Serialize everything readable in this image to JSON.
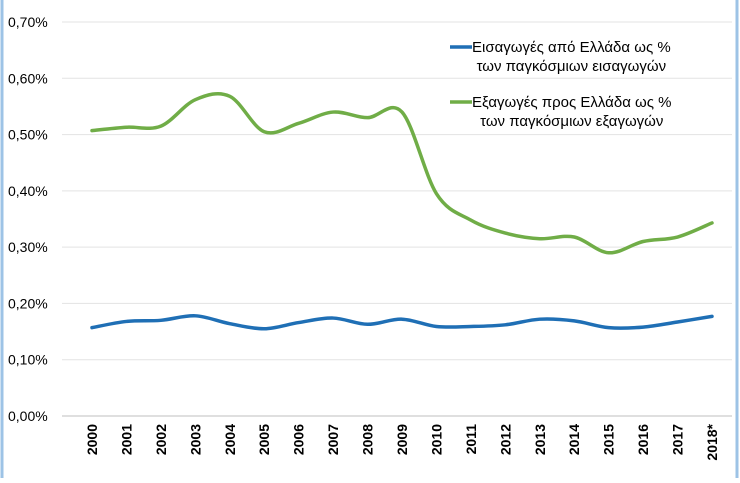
{
  "chart_data": {
    "type": "line",
    "categories": [
      "2000",
      "2001",
      "2002",
      "2003",
      "2004",
      "2005",
      "2006",
      "2007",
      "2008",
      "2009",
      "2010",
      "2011",
      "2012",
      "2013",
      "2014",
      "2015",
      "2016",
      "2017",
      "2018*"
    ],
    "series": [
      {
        "name": "Εισαγωγές από Ελλάδα ως %\nτων παγκόσμιων εισαγωγών",
        "color": "#1f6fb5",
        "values": [
          0.157,
          0.168,
          0.17,
          0.178,
          0.164,
          0.155,
          0.166,
          0.174,
          0.163,
          0.172,
          0.159,
          0.159,
          0.162,
          0.172,
          0.169,
          0.157,
          0.158,
          0.167,
          0.177
        ]
      },
      {
        "name": "Εξαγωγές προς Ελλάδα ως %\nτων παγκόσμιων εξαγωγών",
        "color": "#70ad47",
        "values": [
          0.507,
          0.513,
          0.515,
          0.562,
          0.568,
          0.505,
          0.52,
          0.54,
          0.53,
          0.54,
          0.395,
          0.348,
          0.325,
          0.315,
          0.318,
          0.29,
          0.31,
          0.318,
          0.343
        ]
      }
    ],
    "ylim": [
      0,
      0.7
    ],
    "yticks": [
      {
        "value": 0,
        "label": "0,00%"
      },
      {
        "value": 0.1,
        "label": "0,10%"
      },
      {
        "value": 0.2,
        "label": "0,20%"
      },
      {
        "value": 0.3,
        "label": "0,30%"
      },
      {
        "value": 0.4,
        "label": "0,40%"
      },
      {
        "value": 0.5,
        "label": "0,50%"
      },
      {
        "value": 0.6,
        "label": "0,60%"
      },
      {
        "value": 0.7,
        "label": "0,70%"
      }
    ],
    "grid": true,
    "smooth": true
  }
}
